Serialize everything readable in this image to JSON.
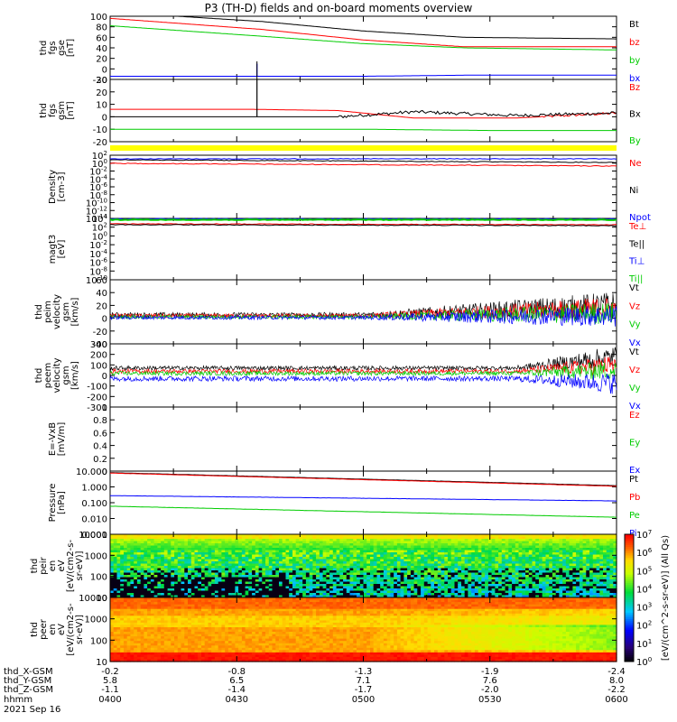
{
  "title": "P3 (TH-D) fields and on-board moments overview",
  "date": "2021 Sep 16",
  "chart_data": [
    {
      "type": "line",
      "panel": "fgs-gse",
      "ylabel": [
        "thd",
        "fgs",
        "gse",
        "[nT]"
      ],
      "ylim": [
        -20,
        100
      ],
      "ticks": [
        -20,
        0,
        20,
        40,
        60,
        80,
        100
      ],
      "series": [
        {
          "name": "Bt",
          "color": "#000000",
          "x": [
            0,
            0.3,
            0.5,
            0.7,
            1
          ],
          "values": [
            108,
            90,
            72,
            60,
            57
          ]
        },
        {
          "name": "bz",
          "color": "#ff0000",
          "x": [
            0,
            0.3,
            0.5,
            0.7,
            1
          ],
          "values": [
            96,
            75,
            55,
            42,
            42
          ]
        },
        {
          "name": "by",
          "color": "#00cc00",
          "x": [
            0,
            0.3,
            0.5,
            0.7,
            1
          ],
          "values": [
            82,
            62,
            48,
            40,
            36
          ]
        },
        {
          "name": "bx",
          "color": "#0000ff",
          "x": [
            0,
            0.28,
            0.5,
            0.7,
            1
          ],
          "values": [
            -14,
            -14,
            -14,
            -12,
            -12
          ],
          "spike": {
            "x": 0.29,
            "to": 10
          }
        }
      ]
    },
    {
      "type": "line",
      "panel": "fgs-gsm",
      "ylabel": [
        "thd",
        "fgs",
        "gsm",
        "[nT]"
      ],
      "ylim": [
        -20,
        30
      ],
      "ticks": [
        -20,
        -10,
        0,
        10,
        20,
        30
      ],
      "series": [
        {
          "name": "Bz",
          "color": "#ff0000",
          "x": [
            0,
            0.28,
            0.45,
            0.6,
            0.8,
            1
          ],
          "values": [
            6,
            6,
            5,
            -1,
            -1,
            3
          ]
        },
        {
          "name": "Bx",
          "color": "#000000",
          "x": [
            0,
            0.28,
            0.45,
            0.6,
            0.8,
            1
          ],
          "values": [
            0,
            0,
            0,
            4,
            1,
            3
          ],
          "spike": {
            "x": 0.29,
            "to": 30
          }
        },
        {
          "name": "By",
          "color": "#00cc00",
          "x": [
            0,
            0.28,
            0.5,
            0.75,
            1
          ],
          "values": [
            -10,
            -10,
            -10,
            -11,
            -11
          ]
        }
      ]
    },
    {
      "type": "line",
      "panel": "density",
      "ylabel": [
        "Density",
        "[cm-3]"
      ],
      "log": true,
      "tick_labels": [
        "10^2",
        "10^0",
        "10^-2",
        "10^-4",
        "10^-6",
        "10^-8",
        "10^-10",
        "10^-12",
        "10^-14"
      ],
      "series": [
        {
          "name": "Ne",
          "color": "#ff0000"
        },
        {
          "name": "Ni",
          "color": "#000000"
        },
        {
          "name": "Npot",
          "color": "#0000ff"
        }
      ]
    },
    {
      "type": "line",
      "panel": "temperature",
      "ylabel": [
        "magt3",
        "[eV]"
      ],
      "log": true,
      "tick_labels": [
        "10^4",
        "10^2",
        "10^0",
        "10^-2",
        "10^-4",
        "10^-6",
        "10^-8",
        "10^-10"
      ],
      "series": [
        {
          "name": "Te⊥",
          "color": "#ff0000"
        },
        {
          "name": "Te||",
          "color": "#000000"
        },
        {
          "name": "Ti⊥",
          "color": "#0000ff"
        },
        {
          "name": "Ti||",
          "color": "#00cc00"
        }
      ]
    },
    {
      "type": "line",
      "panel": "peim-velocity",
      "ylabel": [
        "thd",
        "peim",
        "velocity",
        "gsm",
        "[km/s]"
      ],
      "ylim": [
        -40,
        60
      ],
      "ticks": [
        -40,
        -20,
        0,
        20,
        40,
        60
      ],
      "series": [
        {
          "name": "Vt",
          "color": "#000000"
        },
        {
          "name": "Vz",
          "color": "#ff0000"
        },
        {
          "name": "Vy",
          "color": "#00cc00"
        },
        {
          "name": "Vx",
          "color": "#0000ff"
        }
      ]
    },
    {
      "type": "line",
      "panel": "peem-velocity",
      "ylabel": [
        "thd",
        "peem",
        "velocity",
        "gsm",
        "[km/s]"
      ],
      "ylim": [
        -300,
        300
      ],
      "ticks": [
        -300,
        -200,
        -100,
        0,
        100,
        200,
        300
      ],
      "series": [
        {
          "name": "Vt",
          "color": "#000000"
        },
        {
          "name": "Vz",
          "color": "#ff0000"
        },
        {
          "name": "Vy",
          "color": "#00cc00"
        },
        {
          "name": "Vx",
          "color": "#0000ff"
        }
      ]
    },
    {
      "type": "line",
      "panel": "efield",
      "ylabel": [
        "E=-VxB",
        "[mV/m]"
      ],
      "ylim": [
        0,
        1
      ],
      "ticks": [
        0.0,
        0.2,
        0.4,
        0.6,
        0.8,
        1.0
      ],
      "series": [
        {
          "name": "Ez",
          "color": "#ff0000"
        },
        {
          "name": "Ey",
          "color": "#00cc00"
        },
        {
          "name": "Ex",
          "color": "#0000ff"
        }
      ]
    },
    {
      "type": "line",
      "panel": "pressure",
      "ylabel": [
        "Pressure",
        "[nPa]"
      ],
      "log": true,
      "tick_labels": [
        "10.000",
        "1.000",
        "0.100",
        "0.010",
        "0.001"
      ],
      "series": [
        {
          "name": "Pt",
          "color": "#000000",
          "x": [
            0,
            1
          ],
          "values": [
            8,
            1.2
          ]
        },
        {
          "name": "Pb",
          "color": "#ff0000",
          "x": [
            0,
            1
          ],
          "values": [
            7.5,
            1.1
          ]
        },
        {
          "name": "Pe",
          "color": "#00cc00",
          "x": [
            0,
            1
          ],
          "values": [
            0.06,
            0.012
          ]
        },
        {
          "name": "Pi",
          "color": "#0000ff",
          "x": [
            0,
            1
          ],
          "values": [
            0.28,
            0.13
          ]
        }
      ]
    },
    {
      "type": "heatmap",
      "panel": "peir-spectrogram",
      "ylabel": [
        "thd",
        "peir",
        "en",
        "eV",
        "[eV/(cm2-s-",
        "sr-eV)]"
      ],
      "ylim": [
        10,
        20000
      ],
      "log": true,
      "tick_labels": [
        "10000",
        "1000",
        "100",
        "10"
      ]
    },
    {
      "type": "heatmap",
      "panel": "peer-spectrogram",
      "ylabel": [
        "thd",
        "peer",
        "en",
        "eV",
        "[eV/(cm2-s-",
        "sr-eV)]"
      ],
      "ylim": [
        5,
        20000
      ],
      "log": true,
      "tick_labels": [
        "10000",
        "1000",
        "100",
        "10"
      ]
    },
    {
      "type": "colorbar",
      "panel": "colorbar",
      "label": "[eV/(cm^2-s-sr-eV)] (All Qs)",
      "tick_labels": [
        "10^7",
        "10^6",
        "10^5",
        "10^4",
        "10^3",
        "10^2",
        "10^1",
        "10^0"
      ]
    }
  ],
  "xaxis": {
    "row_labels": [
      "thd_X-GSM",
      "thd_Y-GSM",
      "thd_Z-GSM",
      "hhmm"
    ],
    "columns": [
      [
        "-0.2",
        "5.8",
        "-1.1",
        "0400"
      ],
      [
        "-0.8",
        "6.5",
        "-1.4",
        "0430"
      ],
      [
        "-1.3",
        "7.1",
        "-1.7",
        "0500"
      ],
      [
        "-1.9",
        "7.6",
        "-2.0",
        "0530"
      ],
      [
        "-2.4",
        "8.0",
        "-2.2",
        "0600"
      ]
    ]
  }
}
